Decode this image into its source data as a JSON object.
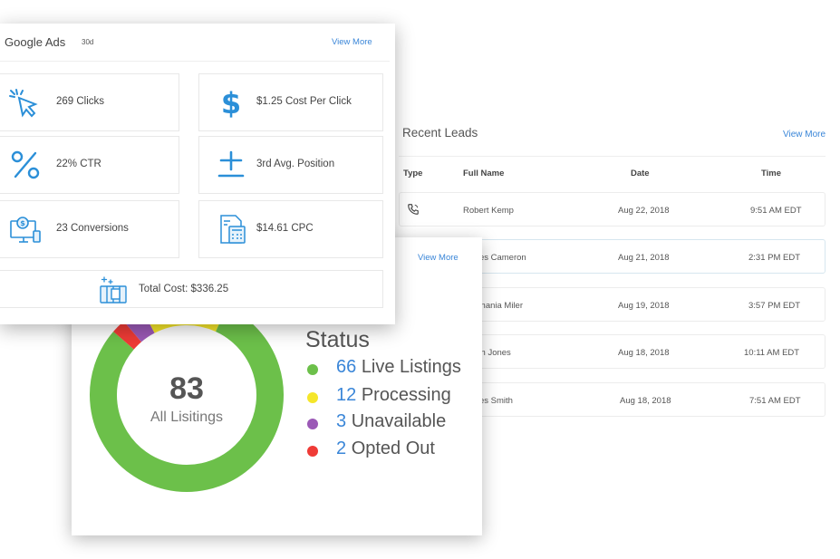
{
  "google_ads": {
    "title": "Google Ads",
    "period_badge": "30d",
    "view_more": "View More",
    "metrics": [
      {
        "icon": "cursor-click-icon",
        "label": "269 Clicks"
      },
      {
        "icon": "dollar-icon",
        "label": "$1.25 Cost Per Click"
      },
      {
        "icon": "percent-icon",
        "label": "22% CTR"
      },
      {
        "icon": "plus-minus-icon",
        "label": "3rd Avg. Position"
      },
      {
        "icon": "monitor-conversion-icon",
        "label": "23 Conversions"
      },
      {
        "icon": "calculator-icon",
        "label": "$14.61 CPC"
      }
    ],
    "total": {
      "icon": "money-stack-icon",
      "label": "Total Cost: $336.25"
    }
  },
  "recent_leads": {
    "title": "Recent Leads",
    "view_more": "View More",
    "columns": [
      "Type",
      "Full Name",
      "Date",
      "Time"
    ],
    "rows": [
      {
        "type_icon": "phone-icon",
        "name": "Robert Kemp",
        "date": "Aug 22, 2018",
        "time": "9:51 AM EDT"
      },
      {
        "type_icon": "mail-icon",
        "name": "James Cameron",
        "date": "Aug 21, 2018",
        "time": "2:31 PM EDT"
      },
      {
        "type_icon": "mail-icon",
        "name": "Stephania Miler",
        "date": "Aug 19, 2018",
        "time": "3:57 PM EDT"
      },
      {
        "type_icon": "phone-icon",
        "name": "Ralph Jones",
        "date": "Aug 18, 2018",
        "time": "10:11 AM EDT"
      },
      {
        "type_icon": "mail-icon",
        "name": "James Smith",
        "date": "Aug 18, 2018",
        "time": "7:51 AM EDT"
      }
    ]
  },
  "status": {
    "view_more": "View More",
    "title": "Status",
    "total": "83",
    "total_label": "All Lisitings",
    "items": [
      {
        "count": "66",
        "label": "Live Listings",
        "color": "#6cc04a"
      },
      {
        "count": "12",
        "label": "Processing",
        "color": "#f5e62a"
      },
      {
        "count": "3",
        "label": "Unavailable",
        "color": "#9b59b6"
      },
      {
        "count": "2",
        "label": "Opted Out",
        "color": "#ef3b36"
      }
    ]
  }
}
